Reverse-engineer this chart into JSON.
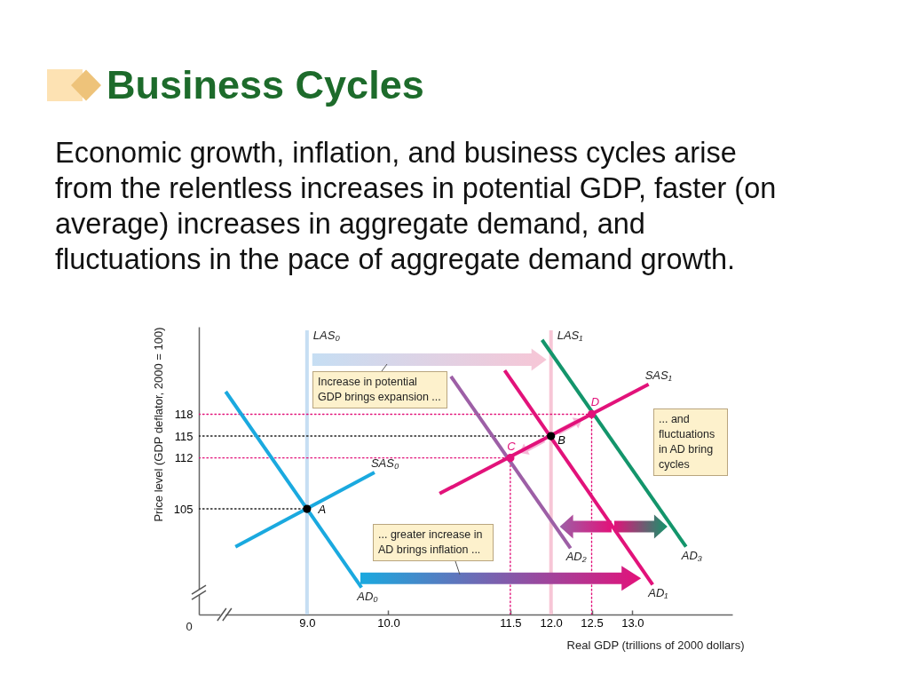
{
  "chart_data": {
    "type": "line",
    "title": "Business Cycles",
    "subtitle": "Economic growth, inflation, and business cycles arise from the relentless increases in potential GDP, faster (on average) increases in aggregate demand, and fluctuations in the pace of aggregate demand growth.",
    "xlabel": "Real GDP (trillions of 2000 dollars)",
    "ylabel": "Price level (GDP deflator, 2000 = 100)",
    "xlim": [
      7.67,
      14.23
    ],
    "ylim": [
      90.5,
      130
    ],
    "xticks": [
      {
        "value": 9,
        "label": "9.0"
      },
      {
        "value": 10,
        "label": "10.0"
      },
      11.5,
      {
        "value": 12,
        "label": "12.0"
      },
      12.5,
      {
        "value": 13,
        "label": "13.0"
      }
    ],
    "yticks": [
      105,
      112,
      115,
      118
    ],
    "series": [
      {
        "name": "LAS₀",
        "color": "#c6def3",
        "x": [
          9.0,
          9.0
        ],
        "values": [
          90.5,
          129.5
        ]
      },
      {
        "name": "LAS₁",
        "color": "#f7c6d6",
        "x": [
          12.0,
          12.0
        ],
        "values": [
          90.5,
          129.5
        ]
      },
      {
        "color": "#e2127a",
        "line_style": "dotted",
        "x": [
          7.67,
          12.5
        ],
        "values": [
          118,
          118
        ]
      },
      {
        "color": "#222222",
        "line_style": "dotted",
        "x": [
          7.67,
          12.0
        ],
        "values": [
          115,
          115
        ]
      },
      {
        "color": "#e2127a",
        "line_style": "dotted",
        "x": [
          7.67,
          11.5
        ],
        "values": [
          112,
          112
        ]
      },
      {
        "color": "#222222",
        "line_style": "dotted",
        "x": [
          7.67,
          9.0
        ],
        "values": [
          105,
          105
        ]
      },
      {
        "color": "#e2127a",
        "line_style": "dotted",
        "x": [
          11.5,
          11.5
        ],
        "values": [
          90.5,
          112
        ]
      },
      {
        "color": "#e2127a",
        "line_style": "dotted",
        "x": [
          12.5,
          12.5
        ],
        "values": [
          90.5,
          118
        ]
      },
      {
        "name": "AD₀",
        "color": "#1aa9df",
        "x": [
          8.0,
          9.67
        ],
        "values": [
          121.1,
          94.2
        ]
      },
      {
        "name": "SAS₀",
        "color": "#1aa9df",
        "x": [
          8.12,
          9.83
        ],
        "values": [
          99.8,
          110.0
        ]
      },
      {
        "name": "AD₂",
        "color": "#9d5fa6",
        "x": [
          10.77,
          12.24
        ],
        "values": [
          123.2,
          99.6
        ]
      },
      {
        "name": "AD₁",
        "color": "#e2127a",
        "x": [
          11.43,
          13.25
        ],
        "values": [
          124.0,
          94.6
        ]
      },
      {
        "name": "AD₃",
        "color": "#13956b",
        "x": [
          11.89,
          13.66
        ],
        "values": [
          128.2,
          99.8
        ]
      },
      {
        "name": "SAS₁",
        "color": "#e2127a",
        "x": [
          10.63,
          13.2
        ],
        "values": [
          107.1,
          122.1
        ]
      },
      {
        "type": "scatter",
        "marker": "circle",
        "color": "#000000",
        "x": [
          9.0,
          12.0
        ],
        "values": [
          105,
          115
        ]
      },
      {
        "type": "scatter",
        "marker": "circle",
        "color": "#e2127a",
        "x": [
          11.5,
          12.5
        ],
        "values": [
          112,
          118
        ]
      }
    ],
    "annotations": [
      "0",
      "Increase in potential GDP brings expansion ...",
      "... and fluctuations in AD bring cycles",
      "... greater increase in AD brings inflation ...",
      {
        "text": "A",
        "x": 9.0,
        "y": 105
      },
      {
        "text": "B",
        "x": 12.0,
        "y": 115
      },
      {
        "text": "C",
        "x": 11.5,
        "y": 112
      },
      {
        "text": "D",
        "x": 12.5,
        "y": 118
      }
    ]
  }
}
